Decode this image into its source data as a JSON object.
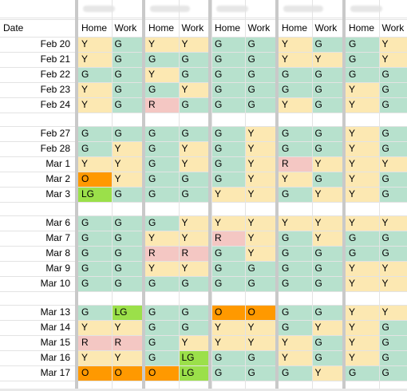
{
  "header": {
    "date_label": "Date",
    "home_label": "Home",
    "work_label": "Work"
  },
  "colors": {
    "G": "#b7e1cd",
    "Y": "#fce8b2",
    "R": "#f4c7c3",
    "O": "#ff9900",
    "LG": "#9be04a"
  },
  "weeks": [
    {
      "rows": [
        {
          "date": "Feb 20",
          "cells": [
            [
              "Y",
              "G"
            ],
            [
              "Y",
              "Y"
            ],
            [
              "G",
              "G"
            ],
            [
              "Y",
              "G"
            ],
            [
              "G",
              "Y"
            ]
          ]
        },
        {
          "date": "Feb 21",
          "cells": [
            [
              "Y",
              "G"
            ],
            [
              "G",
              "G"
            ],
            [
              "G",
              "G"
            ],
            [
              "Y",
              "Y"
            ],
            [
              "G",
              "Y"
            ]
          ]
        },
        {
          "date": "Feb 22",
          "cells": [
            [
              "G",
              "G"
            ],
            [
              "Y",
              "G"
            ],
            [
              "G",
              "G"
            ],
            [
              "G",
              "G"
            ],
            [
              "G",
              "G"
            ]
          ]
        },
        {
          "date": "Feb 23",
          "cells": [
            [
              "Y",
              "G"
            ],
            [
              "G",
              "Y"
            ],
            [
              "G",
              "G"
            ],
            [
              "G",
              "G"
            ],
            [
              "Y",
              "G"
            ]
          ]
        },
        {
          "date": "Feb 24",
          "cells": [
            [
              "Y",
              "G"
            ],
            [
              "R",
              "G"
            ],
            [
              "G",
              "G"
            ],
            [
              "Y",
              "G"
            ],
            [
              "Y",
              "G"
            ]
          ]
        }
      ]
    },
    {
      "rows": [
        {
          "date": "Feb 27",
          "cells": [
            [
              "G",
              "G"
            ],
            [
              "G",
              "G"
            ],
            [
              "G",
              "Y"
            ],
            [
              "G",
              "G"
            ],
            [
              "Y",
              "G"
            ]
          ]
        },
        {
          "date": "Feb 28",
          "cells": [
            [
              "G",
              "Y"
            ],
            [
              "G",
              "Y"
            ],
            [
              "G",
              "Y"
            ],
            [
              "G",
              "G"
            ],
            [
              "Y",
              "G"
            ]
          ]
        },
        {
          "date": "Mar 1",
          "cells": [
            [
              "Y",
              "Y"
            ],
            [
              "G",
              "Y"
            ],
            [
              "G",
              "Y"
            ],
            [
              "R",
              "Y"
            ],
            [
              "Y",
              "Y"
            ]
          ]
        },
        {
          "date": "Mar 2",
          "cells": [
            [
              "O",
              "Y"
            ],
            [
              "G",
              "G"
            ],
            [
              "G",
              "Y"
            ],
            [
              "Y",
              "G"
            ],
            [
              "Y",
              "G"
            ]
          ]
        },
        {
          "date": "Mar 3",
          "cells": [
            [
              "LG",
              "G"
            ],
            [
              "G",
              "G"
            ],
            [
              "Y",
              "Y"
            ],
            [
              "G",
              "Y"
            ],
            [
              "Y",
              "G"
            ]
          ]
        }
      ]
    },
    {
      "rows": [
        {
          "date": "Mar 6",
          "cells": [
            [
              "G",
              "G"
            ],
            [
              "G",
              "Y"
            ],
            [
              "Y",
              "Y"
            ],
            [
              "Y",
              "Y"
            ],
            [
              "Y",
              "Y"
            ]
          ]
        },
        {
          "date": "Mar 7",
          "cells": [
            [
              "G",
              "G"
            ],
            [
              "Y",
              "Y"
            ],
            [
              "R",
              "Y"
            ],
            [
              "G",
              "Y"
            ],
            [
              "G",
              "G"
            ]
          ]
        },
        {
          "date": "Mar 8",
          "cells": [
            [
              "G",
              "G"
            ],
            [
              "R",
              "R"
            ],
            [
              "G",
              "Y"
            ],
            [
              "G",
              "G"
            ],
            [
              "G",
              "G"
            ]
          ]
        },
        {
          "date": "Mar 9",
          "cells": [
            [
              "G",
              "G"
            ],
            [
              "Y",
              "Y"
            ],
            [
              "G",
              "G"
            ],
            [
              "G",
              "G"
            ],
            [
              "Y",
              "Y"
            ]
          ]
        },
        {
          "date": "Mar 10",
          "cells": [
            [
              "G",
              "G"
            ],
            [
              "G",
              "G"
            ],
            [
              "G",
              "G"
            ],
            [
              "G",
              "G"
            ],
            [
              "Y",
              "Y"
            ]
          ]
        }
      ]
    },
    {
      "rows": [
        {
          "date": "Mar 13",
          "cells": [
            [
              "G",
              "LG"
            ],
            [
              "G",
              "G"
            ],
            [
              "O",
              "O"
            ],
            [
              "G",
              "G"
            ],
            [
              "Y",
              "Y"
            ]
          ]
        },
        {
          "date": "Mar 14",
          "cells": [
            [
              "Y",
              "Y"
            ],
            [
              "G",
              "G"
            ],
            [
              "Y",
              "Y"
            ],
            [
              "G",
              "Y"
            ],
            [
              "Y",
              "G"
            ]
          ]
        },
        {
          "date": "Mar 15",
          "cells": [
            [
              "R",
              "R"
            ],
            [
              "G",
              "Y"
            ],
            [
              "Y",
              "Y"
            ],
            [
              "Y",
              "G"
            ],
            [
              "Y",
              "G"
            ]
          ]
        },
        {
          "date": "Mar 16",
          "cells": [
            [
              "Y",
              "Y"
            ],
            [
              "G",
              "LG"
            ],
            [
              "G",
              "G"
            ],
            [
              "Y",
              "G"
            ],
            [
              "Y",
              "G"
            ]
          ]
        },
        {
          "date": "Mar 17",
          "cells": [
            [
              "O",
              "O"
            ],
            [
              "O",
              "LG"
            ],
            [
              "G",
              "G"
            ],
            [
              "G",
              "Y"
            ],
            [
              "G",
              "G"
            ]
          ]
        }
      ]
    }
  ]
}
